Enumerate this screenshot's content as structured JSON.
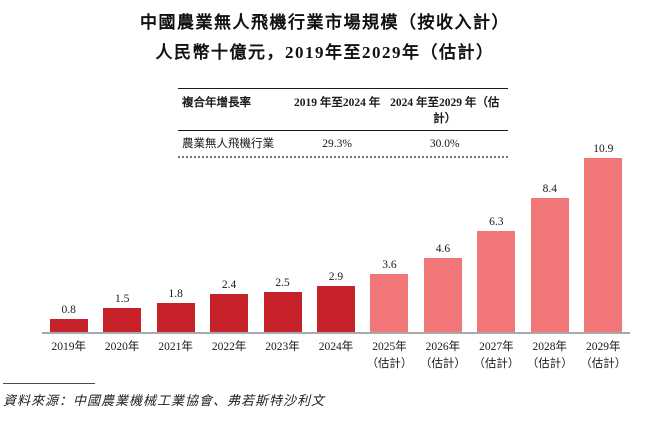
{
  "title": {
    "line1": "中國農業無人飛機行業市場規模（按收入計）",
    "line2": "人民幣十億元，2019年至2029年（估計）"
  },
  "cagr_table": {
    "header": [
      "複合年增長率",
      "2019 年至2024 年",
      "2024 年至2029 年（估計）"
    ],
    "row": [
      "農業無人飛機行業",
      "29.3%",
      "30.0%"
    ]
  },
  "chart_data": {
    "type": "bar",
    "title": "中國農業無人飛機行業市場規模（按收入計）",
    "unit_label": "人民幣十億元",
    "categories": [
      "2019年",
      "2020年",
      "2021年",
      "2022年",
      "2023年",
      "2024年",
      "2025年（估計）",
      "2026年（估計）",
      "2027年（估計）",
      "2028年（估計）",
      "2029年（估計）"
    ],
    "x_labels": [
      {
        "label": "2019年",
        "sublabel": ""
      },
      {
        "label": "2020年",
        "sublabel": ""
      },
      {
        "label": "2021年",
        "sublabel": ""
      },
      {
        "label": "2022年",
        "sublabel": ""
      },
      {
        "label": "2023年",
        "sublabel": ""
      },
      {
        "label": "2024年",
        "sublabel": ""
      },
      {
        "label": "2025年",
        "sublabel": "（估計）"
      },
      {
        "label": "2026年",
        "sublabel": "（估計）"
      },
      {
        "label": "2027年",
        "sublabel": "（估計）"
      },
      {
        "label": "2028年",
        "sublabel": "（估計）"
      },
      {
        "label": "2029年",
        "sublabel": "（估計）"
      }
    ],
    "values": [
      0.8,
      1.5,
      1.8,
      2.4,
      2.5,
      2.9,
      3.6,
      4.6,
      6.3,
      8.4,
      10.9
    ],
    "estimate_start_index": 6,
    "colors": {
      "actual": "#C7212A",
      "estimate": "#F17678",
      "baseline": "#A8A8A8"
    },
    "ylim": [
      0,
      11
    ],
    "grid": false,
    "legend": "none",
    "data_labels": true
  },
  "footer": {
    "source": "資料來源：中國農業機械工業協會、弗若斯特沙利文"
  }
}
